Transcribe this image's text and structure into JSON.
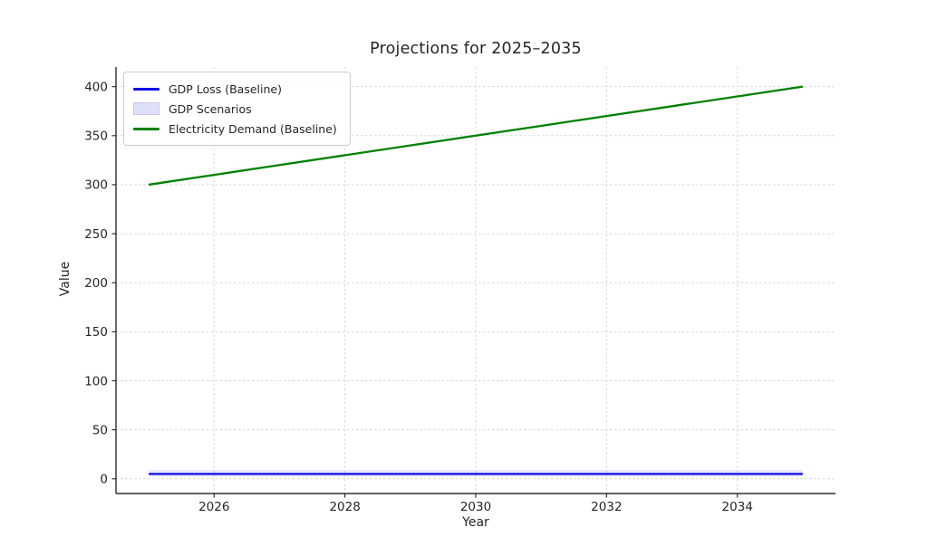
{
  "legend": {
    "items": [
      {
        "label": "GDP Loss (Baseline)",
        "type": "line",
        "color": "#0d0de8"
      },
      {
        "label": "GDP Scenarios",
        "type": "patch",
        "color": "#dfe0f8",
        "border": "#c6c8f0"
      },
      {
        "label": "Electricity Demand (Baseline)",
        "type": "line",
        "color": "#008000"
      }
    ]
  },
  "chart_data": {
    "type": "line",
    "title": "Projections for 2025–2035",
    "xlabel": "Year",
    "ylabel": "Value",
    "x": [
      2025,
      2026,
      2027,
      2028,
      2029,
      2030,
      2031,
      2032,
      2033,
      2034,
      2035
    ],
    "series": [
      {
        "name": "GDP Loss (Baseline)",
        "color": "#0d0de8",
        "values": [
          5,
          5,
          5,
          5,
          5,
          5,
          5,
          5,
          5,
          5,
          5
        ]
      },
      {
        "name": "Electricity Demand (Baseline)",
        "color": "#008000",
        "values": [
          300,
          310,
          320,
          330,
          340,
          350,
          360,
          370,
          380,
          390,
          400
        ]
      }
    ],
    "band": {
      "name": "GDP Scenarios",
      "fill": "#8888dd",
      "opacity": 0.18,
      "lower": [
        2,
        2,
        2,
        2,
        2,
        2,
        2,
        2,
        2,
        2,
        2
      ],
      "upper": [
        9,
        9,
        9,
        9,
        9,
        9,
        9,
        9,
        9,
        9,
        9
      ]
    },
    "x_ticks": {
      "values": [
        2026,
        2028,
        2030,
        2032,
        2034
      ],
      "labels": [
        "2026",
        "2028",
        "2030",
        "2032",
        "2034"
      ]
    },
    "y_ticks": {
      "values": [
        0,
        50,
        100,
        150,
        200,
        250,
        300,
        350,
        400
      ],
      "labels": [
        "0",
        "50",
        "100",
        "150",
        "200",
        "250",
        "300",
        "350",
        "400"
      ]
    },
    "xlim": [
      2024.5,
      2035.5
    ],
    "ylim": [
      -15,
      420
    ],
    "grid": true,
    "grid_color": "#d6d6d6",
    "spine_color": "#2e2e2e",
    "tick_label_color": "#262626",
    "legend_position": "upper left"
  }
}
